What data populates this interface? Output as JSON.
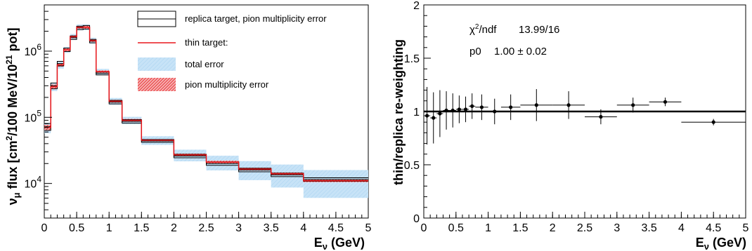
{
  "chart_data": [
    {
      "type": "step",
      "xlabel": "E",
      "xlabel_sub": "ν",
      "xlabel_unit": " (GeV)",
      "ylabel": "ν",
      "ylabel_sub": "μ",
      "ylabel_mid": " flux [cm",
      "ylabel_sup1": "2",
      "ylabel_mid2": "/100 MeV/10",
      "ylabel_sup2": "21",
      "ylabel_end": " pot]",
      "log_y": true,
      "xlim": [
        0,
        5
      ],
      "ylim": [
        3000,
        5000000
      ],
      "x_ticks": [
        "0",
        "0.5",
        "1",
        "1.5",
        "2",
        "2.5",
        "3",
        "3.5",
        "4",
        "4.5",
        "5"
      ],
      "y_ticks": [
        {
          "base": "10",
          "exp": "4",
          "value": 10000
        },
        {
          "base": "10",
          "exp": "5",
          "value": 100000
        },
        {
          "base": "10",
          "exp": "6",
          "value": 1000000
        }
      ],
      "bin_edges": [
        0,
        0.1,
        0.2,
        0.3,
        0.4,
        0.5,
        0.6,
        0.7,
        0.8,
        1.0,
        1.2,
        1.5,
        2.0,
        2.5,
        3.0,
        3.5,
        4.0,
        5.0
      ],
      "series": [
        {
          "name": "replica target, pion multiplicity error",
          "values": [
            72000,
            300000,
            650000,
            1050000,
            1600000,
            2250000,
            2300000,
            1420000,
            460000,
            170000,
            87000,
            44000,
            26000,
            20000,
            16000,
            13500,
            11500
          ],
          "band_rel": [
            0.12,
            0.1,
            0.08,
            0.06,
            0.06,
            0.06,
            0.06,
            0.06,
            0.05,
            0.06,
            0.06,
            0.05,
            0.06,
            0.06,
            0.06,
            0.06,
            0.06
          ]
        },
        {
          "name": "thin target:",
          "values": [
            70000,
            290000,
            620000,
            1050000,
            1650000,
            2300000,
            2300000,
            1450000,
            490000,
            175000,
            90000,
            45000,
            27000,
            21000,
            16500,
            14000,
            11000
          ]
        }
      ],
      "bands": [
        {
          "name": "total error",
          "rel": [
            0.18,
            0.14,
            0.12,
            0.1,
            0.1,
            0.1,
            0.1,
            0.1,
            0.1,
            0.12,
            0.13,
            0.15,
            0.2,
            0.25,
            0.32,
            0.38,
            0.45
          ]
        },
        {
          "name": "pion multiplicity error",
          "rel": [
            0.1,
            0.08,
            0.06,
            0.05,
            0.05,
            0.05,
            0.05,
            0.05,
            0.04,
            0.05,
            0.05,
            0.04,
            0.05,
            0.05,
            0.05,
            0.05,
            0.05
          ]
        }
      ],
      "legend": [
        "replica target, pion multiplicity error",
        "thin target:",
        "total error",
        "pion multiplicity error"
      ],
      "colors": {
        "replica": "#000000",
        "thin": "#e8161b",
        "total_band": "#b9dcf5",
        "pion_band": "#e8161b"
      }
    },
    {
      "type": "scatter",
      "xlabel": "E",
      "xlabel_sub": "ν",
      "xlabel_unit": " (GeV)",
      "ylabel": "thin/replica re-weighting",
      "xlim": [
        0,
        5
      ],
      "ylim": [
        0,
        2
      ],
      "x_ticks": [
        "0",
        "0.5",
        "1",
        "1.5",
        "2",
        "2.5",
        "3",
        "3.5",
        "4",
        "4.5",
        "5"
      ],
      "y_ticks": [
        "0",
        "0.5",
        "1",
        "1.5",
        "2"
      ],
      "fit_line": 1.0,
      "stats": {
        "chi2_label": "χ",
        "chi2_sup": "2",
        "chi2_rest": "/ndf",
        "chi2_value": "13.99/16",
        "p0_label": "p0",
        "p0_value": "1.00 ± 0.02"
      },
      "points": [
        {
          "x": 0.05,
          "xerr": 0.05,
          "y": 0.96,
          "yerr": 0.27
        },
        {
          "x": 0.15,
          "xerr": 0.05,
          "y": 0.94,
          "yerr": 0.24
        },
        {
          "x": 0.25,
          "xerr": 0.05,
          "y": 0.98,
          "yerr": 0.22
        },
        {
          "x": 0.35,
          "xerr": 0.05,
          "y": 1.01,
          "yerr": 0.18
        },
        {
          "x": 0.45,
          "xerr": 0.05,
          "y": 1.01,
          "yerr": 0.16
        },
        {
          "x": 0.55,
          "xerr": 0.05,
          "y": 1.02,
          "yerr": 0.13
        },
        {
          "x": 0.65,
          "xerr": 0.05,
          "y": 1.02,
          "yerr": 0.12
        },
        {
          "x": 0.75,
          "xerr": 0.05,
          "y": 1.05,
          "yerr": 0.12
        },
        {
          "x": 0.9,
          "xerr": 0.1,
          "y": 1.04,
          "yerr": 0.12
        },
        {
          "x": 1.1,
          "xerr": 0.1,
          "y": 1.0,
          "yerr": 0.12
        },
        {
          "x": 1.35,
          "xerr": 0.15,
          "y": 1.04,
          "yerr": 0.12
        },
        {
          "x": 1.75,
          "xerr": 0.25,
          "y": 1.06,
          "yerr": 0.15
        },
        {
          "x": 2.25,
          "xerr": 0.25,
          "y": 1.06,
          "yerr": 0.13
        },
        {
          "x": 2.75,
          "xerr": 0.25,
          "y": 0.95,
          "yerr": 0.07
        },
        {
          "x": 3.25,
          "xerr": 0.25,
          "y": 1.06,
          "yerr": 0.07
        },
        {
          "x": 3.75,
          "xerr": 0.25,
          "y": 1.09,
          "yerr": 0.04
        },
        {
          "x": 4.5,
          "xerr": 0.5,
          "y": 0.9,
          "yerr": 0.03
        }
      ]
    }
  ]
}
